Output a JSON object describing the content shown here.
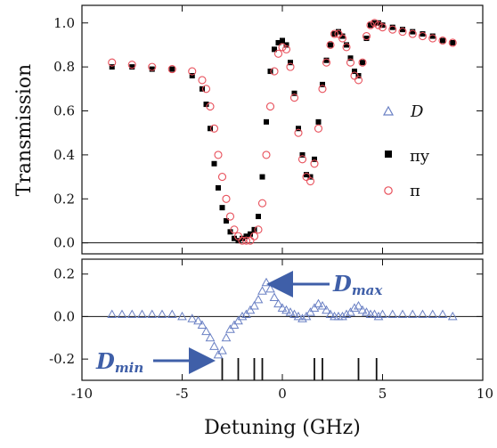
{
  "chart_data": [
    {
      "type": "scatter",
      "ylabel": "Transmission",
      "xlim": [
        -10,
        10
      ],
      "ylim": [
        -0.05,
        1.08
      ],
      "yticks": [
        "0.0",
        "0.2",
        "0.4",
        "0.6",
        "0.8",
        "1.0"
      ],
      "legend_position": "right",
      "series": [
        {
          "name": "πy",
          "marker": "filled-square",
          "color": "#000000",
          "x": [
            -8.5,
            -7.5,
            -6.5,
            -5.5,
            -4.5,
            -4.0,
            -3.8,
            -3.6,
            -3.4,
            -3.2,
            -3.0,
            -2.8,
            -2.6,
            -2.4,
            -2.2,
            -2.0,
            -1.8,
            -1.6,
            -1.4,
            -1.2,
            -1.0,
            -0.8,
            -0.6,
            -0.4,
            -0.2,
            0.0,
            0.2,
            0.4,
            0.6,
            0.8,
            1.0,
            1.2,
            1.4,
            1.6,
            1.8,
            2.0,
            2.2,
            2.4,
            2.6,
            2.8,
            3.0,
            3.2,
            3.4,
            3.6,
            3.8,
            4.0,
            4.2,
            4.4,
            4.6,
            4.8,
            5.0,
            5.5,
            6.0,
            6.5,
            7.0,
            7.5,
            8.0,
            8.5
          ],
          "y": [
            0.8,
            0.8,
            0.79,
            0.79,
            0.76,
            0.7,
            0.63,
            0.52,
            0.36,
            0.25,
            0.16,
            0.1,
            0.05,
            0.02,
            0.01,
            0.02,
            0.03,
            0.04,
            0.06,
            0.12,
            0.3,
            0.55,
            0.78,
            0.88,
            0.91,
            0.92,
            0.9,
            0.82,
            0.68,
            0.52,
            0.4,
            0.31,
            0.3,
            0.38,
            0.55,
            0.72,
            0.83,
            0.9,
            0.95,
            0.96,
            0.94,
            0.9,
            0.84,
            0.78,
            0.76,
            0.82,
            0.93,
            0.99,
            1.0,
            1.0,
            0.99,
            0.98,
            0.97,
            0.96,
            0.95,
            0.94,
            0.92,
            0.91
          ]
        },
        {
          "name": "π",
          "marker": "open-circle",
          "color": "#e8505b",
          "x": [
            -8.5,
            -7.5,
            -6.5,
            -5.5,
            -4.5,
            -4.0,
            -3.8,
            -3.6,
            -3.4,
            -3.2,
            -3.0,
            -2.8,
            -2.6,
            -2.4,
            -2.2,
            -2.0,
            -1.8,
            -1.6,
            -1.4,
            -1.2,
            -1.0,
            -0.8,
            -0.6,
            -0.4,
            -0.2,
            0.0,
            0.2,
            0.4,
            0.6,
            0.8,
            1.0,
            1.2,
            1.4,
            1.6,
            1.8,
            2.0,
            2.2,
            2.4,
            2.6,
            2.8,
            3.0,
            3.2,
            3.4,
            3.6,
            3.8,
            4.0,
            4.2,
            4.4,
            4.6,
            4.8,
            5.0,
            5.5,
            6.0,
            6.5,
            7.0,
            7.5,
            8.0,
            8.5
          ],
          "y": [
            0.82,
            0.81,
            0.8,
            0.79,
            0.78,
            0.74,
            0.7,
            0.62,
            0.52,
            0.4,
            0.3,
            0.2,
            0.12,
            0.06,
            0.03,
            0.01,
            0.01,
            0.01,
            0.03,
            0.06,
            0.18,
            0.4,
            0.62,
            0.78,
            0.86,
            0.89,
            0.88,
            0.8,
            0.66,
            0.5,
            0.38,
            0.3,
            0.28,
            0.36,
            0.52,
            0.7,
            0.82,
            0.9,
            0.95,
            0.95,
            0.93,
            0.89,
            0.82,
            0.76,
            0.74,
            0.82,
            0.94,
            0.99,
            1.0,
            0.99,
            0.98,
            0.97,
            0.96,
            0.95,
            0.94,
            0.93,
            0.92,
            0.91
          ]
        }
      ],
      "legend": [
        {
          "label": "D",
          "marker": "open-triangle",
          "color": "#6a80c4"
        },
        {
          "label": "πy",
          "marker": "filled-square",
          "color": "#000000"
        },
        {
          "label": "π",
          "marker": "open-circle",
          "color": "#e8505b"
        }
      ]
    },
    {
      "type": "scatter",
      "xlabel": "Detuning (GHz)",
      "xlim": [
        -10,
        10
      ],
      "ylim": [
        -0.3,
        0.27
      ],
      "xticks": [
        "-10",
        "-5",
        "0",
        "5",
        "10"
      ],
      "yticks": [
        "-0.2",
        "0.0",
        "0.2"
      ],
      "series": [
        {
          "name": "D",
          "marker": "open-triangle",
          "color": "#6a80c4",
          "x": [
            -8.5,
            -8.0,
            -7.5,
            -7.0,
            -6.5,
            -6.0,
            -5.5,
            -5.0,
            -4.5,
            -4.2,
            -4.0,
            -3.8,
            -3.6,
            -3.4,
            -3.2,
            -3.0,
            -2.8,
            -2.6,
            -2.4,
            -2.2,
            -2.0,
            -1.8,
            -1.6,
            -1.4,
            -1.2,
            -1.0,
            -0.8,
            -0.6,
            -0.4,
            -0.2,
            0.0,
            0.2,
            0.4,
            0.6,
            0.8,
            1.0,
            1.2,
            1.4,
            1.6,
            1.8,
            2.0,
            2.2,
            2.4,
            2.6,
            2.8,
            3.0,
            3.2,
            3.4,
            3.6,
            3.8,
            4.0,
            4.2,
            4.4,
            4.6,
            4.8,
            5.0,
            5.5,
            6.0,
            6.5,
            7.0,
            7.5,
            8.0,
            8.5
          ],
          "y": [
            0.01,
            0.01,
            0.01,
            0.01,
            0.01,
            0.01,
            0.01,
            0.0,
            -0.01,
            -0.02,
            -0.04,
            -0.07,
            -0.1,
            -0.14,
            -0.18,
            -0.16,
            -0.1,
            -0.06,
            -0.04,
            -0.02,
            0.0,
            0.01,
            0.03,
            0.05,
            0.08,
            0.12,
            0.16,
            0.13,
            0.09,
            0.06,
            0.04,
            0.03,
            0.02,
            0.01,
            0.0,
            -0.01,
            0.0,
            0.02,
            0.04,
            0.06,
            0.05,
            0.03,
            0.01,
            0.0,
            0.0,
            0.0,
            0.01,
            0.02,
            0.04,
            0.05,
            0.03,
            0.02,
            0.01,
            0.01,
            0.0,
            0.01,
            0.01,
            0.01,
            0.01,
            0.01,
            0.01,
            0.01,
            0.0
          ]
        }
      ],
      "transition_lines_x": [
        -3.0,
        -2.2,
        -1.4,
        -1.0,
        1.6,
        2.0,
        3.8,
        4.7
      ],
      "annotations": [
        {
          "text_main": "D",
          "text_sub": "max",
          "points_to_x": -0.8,
          "points_to_y": 0.16
        },
        {
          "text_main": "D",
          "text_sub": "min",
          "points_to_x": -3.2,
          "points_to_y": -0.18
        }
      ]
    }
  ]
}
